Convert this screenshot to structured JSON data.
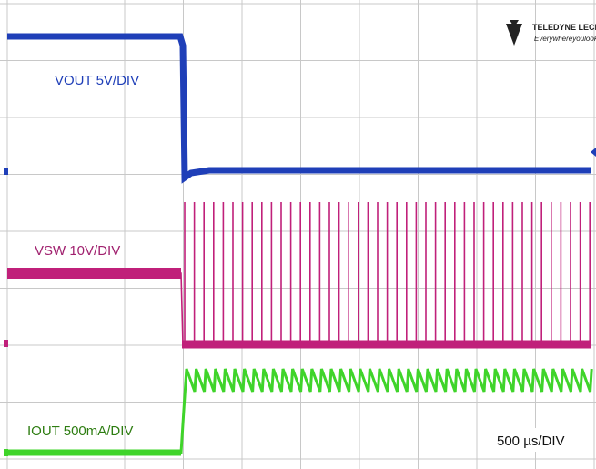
{
  "labels": {
    "vout": "VOUT 5V/DIV",
    "vsw": "VSW 10V/DIV",
    "iout": "IOUT 500mA/DIV",
    "timebase": "500 µs/DIV"
  },
  "logo": {
    "brand": "TELEDYNE LECROY",
    "tagline": "Everywhereyoulook"
  }
}
